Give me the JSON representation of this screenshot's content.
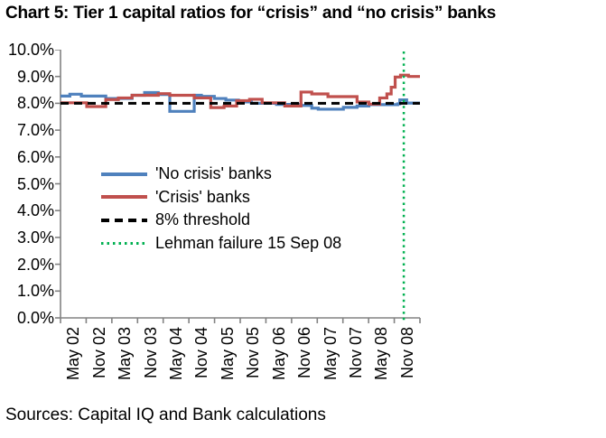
{
  "page": {
    "title": "Chart 5: Tier 1 capital ratios for “crisis” and “no crisis” banks",
    "source_note": "Sources: Capital IQ and Bank calculations"
  },
  "colors": {
    "background": "#ffffff",
    "axis": "#828282",
    "no_crisis_blue": "#4F81BD",
    "crisis_red": "#C0504D",
    "threshold_black": "#000000",
    "event_green": "#00B050"
  },
  "chart_data": {
    "type": "line",
    "title": "Chart 5: Tier 1 capital ratios for “crisis” and “no crisis” banks",
    "subtype": "step",
    "grid": "off",
    "legend_position": "inside-middle-left",
    "y_axis": {
      "min": 0,
      "max": 10,
      "step": 1,
      "unit": "percent",
      "tick_labels": [
        "10.0%",
        "9.0%",
        "8.0%",
        "7.0%",
        "6.0%",
        "5.0%",
        "4.0%",
        "3.0%",
        "2.0%",
        "1.0%",
        "0.0%"
      ]
    },
    "x_axis": {
      "tick_count": 15,
      "range_note": "semi-annual labels from May 2002 to Nov 2008; series x values are percent of axis span (0 = May 02 tick, 100 = axis right end)",
      "tick_labels": [
        "May 02",
        "Nov 02",
        "May 03",
        "Nov 03",
        "May 04",
        "Nov 04",
        "May 05",
        "Nov 05",
        "May 06",
        "Nov 06",
        "May 07",
        "Nov 07",
        "May 08",
        "Nov 08"
      ]
    },
    "series": [
      {
        "id": "no-crisis-banks",
        "name": "'No crisis' banks",
        "color": "#4F81BD",
        "line_style": "solid",
        "step_points": [
          [
            0,
            8.27
          ],
          [
            2.6,
            8.34
          ],
          [
            5.8,
            8.27
          ],
          [
            12.6,
            8.18
          ],
          [
            19.9,
            8.3
          ],
          [
            23.4,
            8.4
          ],
          [
            27.2,
            8.33
          ],
          [
            30.4,
            7.7
          ],
          [
            37.2,
            8.3
          ],
          [
            39.2,
            8.26
          ],
          [
            42.8,
            8.18
          ],
          [
            46.0,
            8.12
          ],
          [
            49.5,
            8.05
          ],
          [
            53.1,
            8.0
          ],
          [
            60.1,
            7.96
          ],
          [
            66.9,
            7.92
          ],
          [
            69.9,
            7.82
          ],
          [
            71.7,
            7.78
          ],
          [
            78.7,
            7.85
          ],
          [
            82.5,
            7.9
          ],
          [
            85.8,
            7.95
          ],
          [
            93.8,
            7.98
          ],
          [
            94.4,
            8.13
          ],
          [
            96.3,
            8.01
          ]
        ]
      },
      {
        "id": "crisis-banks",
        "name": "'Crisis' banks",
        "color": "#C0504D",
        "line_style": "solid",
        "step_points": [
          [
            0,
            8.02
          ],
          [
            7.3,
            7.88
          ],
          [
            12.6,
            8.14
          ],
          [
            16.1,
            8.2
          ],
          [
            19.9,
            8.3
          ],
          [
            27.2,
            8.36
          ],
          [
            30.4,
            8.3
          ],
          [
            37.2,
            8.2
          ],
          [
            41.8,
            7.84
          ],
          [
            45.5,
            7.9
          ],
          [
            49.0,
            8.1
          ],
          [
            52.6,
            8.15
          ],
          [
            56.1,
            8.02
          ],
          [
            62.4,
            7.9
          ],
          [
            66.9,
            8.42
          ],
          [
            69.9,
            8.35
          ],
          [
            74.4,
            8.25
          ],
          [
            82.5,
            8.05
          ],
          [
            85.8,
            7.97
          ],
          [
            88.8,
            8.2
          ],
          [
            90.8,
            8.35
          ],
          [
            92.0,
            8.6
          ],
          [
            93.1,
            8.98
          ],
          [
            94.6,
            9.05
          ],
          [
            96.8,
            9.0
          ]
        ]
      }
    ],
    "threshold_line": {
      "label": "8% threshold",
      "value": 8.0,
      "color": "#000000",
      "line_style": "dashed"
    },
    "event_line": {
      "label": "Lehman failure 15 Sep 08",
      "x_percent": 95.5,
      "color": "#00B050",
      "line_style": "dotted"
    },
    "legend_items": [
      {
        "label": "'No crisis' banks",
        "color": "#4F81BD",
        "line_style": "solid"
      },
      {
        "label": "'Crisis' banks",
        "color": "#C0504D",
        "line_style": "solid"
      },
      {
        "label": "8% threshold",
        "color": "#000000",
        "line_style": "dashed"
      },
      {
        "label": "Lehman failure 15 Sep 08",
        "color": "#00B050",
        "line_style": "dotted"
      }
    ]
  }
}
